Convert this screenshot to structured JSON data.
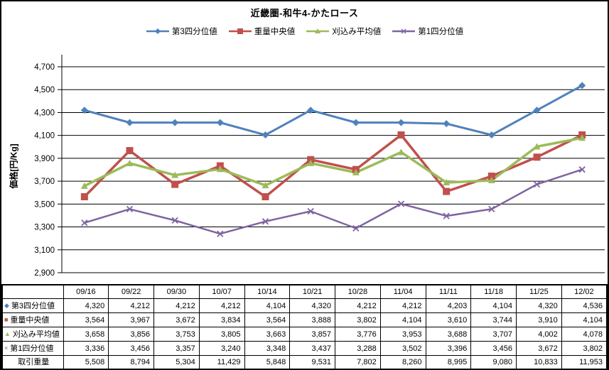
{
  "title": "近畿圏-和牛4-かたロース",
  "chart_data": {
    "type": "line",
    "title": "近畿圏-和牛4-かたロース",
    "categories": [
      "09/16",
      "09/22",
      "09/30",
      "10/07",
      "10/14",
      "10/21",
      "10/28",
      "11/04",
      "11/11",
      "11/18",
      "11/25",
      "12/02"
    ],
    "series": [
      {
        "id": "q3",
        "name": "第3四分位値",
        "color": "#4F81BD",
        "marker": "diamond",
        "values": [
          4320,
          4212,
          4212,
          4212,
          4104,
          4320,
          4212,
          4212,
          4203,
          4104,
          4320,
          4536
        ]
      },
      {
        "id": "median",
        "name": "重量中央値",
        "color": "#C0504D",
        "marker": "square",
        "values": [
          3564,
          3967,
          3672,
          3834,
          3564,
          3888,
          3802,
          4104,
          3610,
          3744,
          3910,
          4104
        ]
      },
      {
        "id": "trimmed-mean",
        "name": "刈込み平均値",
        "color": "#9BBB59",
        "marker": "triangle",
        "values": [
          3658,
          3856,
          3753,
          3805,
          3663,
          3857,
          3776,
          3953,
          3688,
          3707,
          4002,
          4078
        ]
      },
      {
        "id": "q1",
        "name": "第1四分位値",
        "color": "#8064A2",
        "marker": "x",
        "values": [
          3336,
          3456,
          3357,
          3240,
          3348,
          3437,
          3288,
          3502,
          3396,
          3456,
          3672,
          3802
        ]
      }
    ],
    "xlabel": "",
    "ylabel": "価格[円/Kg]",
    "ylim": [
      2900,
      4700
    ],
    "ytick_step": 200,
    "y_tick_labels": [
      "2,900",
      "3,100",
      "3,300",
      "3,500",
      "3,700",
      "3,900",
      "4,100",
      "4,300",
      "4,500",
      "4,700"
    ],
    "grid": true,
    "legend_position": "top"
  },
  "table": {
    "corner_label": "",
    "column_headers": [
      "09/16",
      "09/22",
      "09/30",
      "10/07",
      "10/14",
      "10/21",
      "10/28",
      "11/04",
      "11/11",
      "11/18",
      "11/25",
      "12/02"
    ],
    "rows": [
      {
        "id": "q3",
        "label": "第3四分位値",
        "marker": "diamond",
        "marker_color": "#4F81BD",
        "values": [
          "4,320",
          "4,212",
          "4,212",
          "4,212",
          "4,104",
          "4,320",
          "4,212",
          "4,212",
          "4,203",
          "4,104",
          "4,320",
          "4,536"
        ]
      },
      {
        "id": "median",
        "label": "重量中央値",
        "marker": "square",
        "marker_color": "#C0504D",
        "values": [
          "3,564",
          "3,967",
          "3,672",
          "3,834",
          "3,564",
          "3,888",
          "3,802",
          "4,104",
          "3,610",
          "3,744",
          "3,910",
          "4,104"
        ]
      },
      {
        "id": "trimmed-mean",
        "label": "刈込み平均値",
        "marker": "triangle",
        "marker_color": "#9BBB59",
        "values": [
          "3,658",
          "3,856",
          "3,753",
          "3,805",
          "3,663",
          "3,857",
          "3,776",
          "3,953",
          "3,688",
          "3,707",
          "4,002",
          "4,078"
        ]
      },
      {
        "id": "q1",
        "label": "第1四分位値",
        "marker": "x",
        "marker_color": "#8064A2",
        "values": [
          "3,336",
          "3,456",
          "3,357",
          "3,240",
          "3,348",
          "3,437",
          "3,288",
          "3,502",
          "3,396",
          "3,456",
          "3,672",
          "3,802"
        ]
      },
      {
        "id": "trade-weight",
        "label": "取引重量",
        "marker": null,
        "marker_color": null,
        "values": [
          "5,508",
          "8,794",
          "5,304",
          "11,429",
          "5,848",
          "9,531",
          "7,802",
          "8,260",
          "8,995",
          "9,080",
          "10,833",
          "11,953"
        ]
      }
    ]
  }
}
